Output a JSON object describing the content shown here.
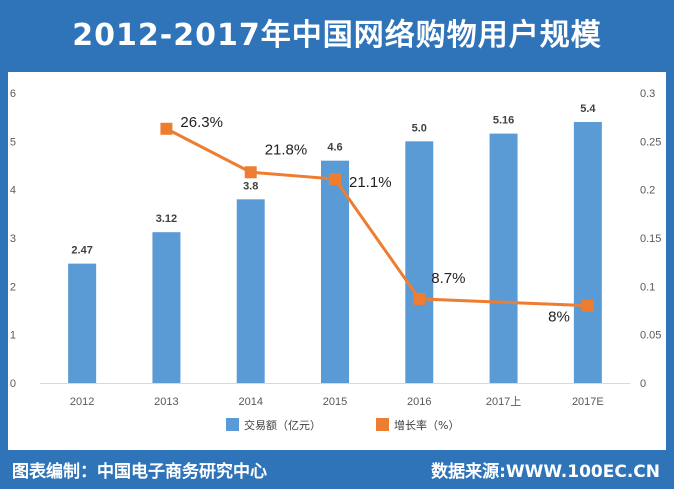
{
  "header": {
    "title": "2012-2017年中国网络购物用户规模"
  },
  "footer": {
    "left": "图表编制：中国电子商务研究中心",
    "right": "数据来源:WWW.100EC.CN"
  },
  "colors": {
    "bar": "#5b9bd5",
    "line": "#ed7d31",
    "frame": "#2f73b8"
  },
  "chart_data": {
    "type": "bar",
    "categories": [
      "2012",
      "2013",
      "2014",
      "2015",
      "2016",
      "2017上",
      "2017E"
    ],
    "series": [
      {
        "name": "交易额（亿元）",
        "type": "bar",
        "axis": "left",
        "values": [
          2.47,
          3.12,
          3.8,
          4.6,
          5.0,
          5.16,
          5.4
        ],
        "labels": [
          "2.47",
          "3.12",
          "3.8",
          "4.6",
          "5.0",
          "5.16",
          "5.4"
        ]
      },
      {
        "name": "增长率（%）",
        "type": "line",
        "axis": "right",
        "values": [
          null,
          0.263,
          0.218,
          0.211,
          0.087,
          null,
          0.08
        ],
        "labels": [
          "",
          "26.3%",
          "21.8%",
          "21.1%",
          "8.7%",
          "",
          "8%"
        ]
      }
    ],
    "y_left": {
      "min": 0,
      "max": 6,
      "ticks": [
        "0",
        "1",
        "2",
        "3",
        "4",
        "5",
        "6"
      ]
    },
    "y_right": {
      "min": 0,
      "max": 0.3,
      "ticks": [
        "0",
        "0.05",
        "0.1",
        "0.15",
        "0.2",
        "0.25",
        "0.3"
      ]
    },
    "grid": false,
    "legend": "bottom"
  }
}
